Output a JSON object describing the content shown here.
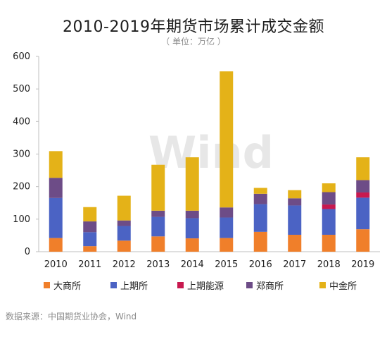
{
  "header": {
    "title": "2010-2019年期货市场累计成交金额",
    "subtitle": "（ 单位：万亿 ）"
  },
  "watermark": "Wind",
  "source": "数据来源：中国期货业协会，Wind",
  "colors": {
    "dalian": "#f07f2a",
    "shanghai": "#4b63c4",
    "ine": "#c8194f",
    "zhengzhou": "#6d4c87",
    "cffex": "#e4b218",
    "axis": "#bfbfbf",
    "grid": "#e5e5e5"
  },
  "chart_data": {
    "type": "bar",
    "stacked": true,
    "categories": [
      "2010",
      "2011",
      "2012",
      "2013",
      "2014",
      "2015",
      "2016",
      "2017",
      "2018",
      "2019"
    ],
    "ylim": [
      0,
      600
    ],
    "yticks": [
      0,
      100,
      200,
      300,
      400,
      500,
      600
    ],
    "grid": false,
    "legend_position": "bottom",
    "series": [
      {
        "name": "大商所",
        "key": "dalian",
        "values": [
          42,
          17,
          34,
          47,
          41,
          42,
          61,
          52,
          52,
          69
        ]
      },
      {
        "name": "上期所",
        "key": "shanghai",
        "values": [
          123,
          43,
          45,
          60,
          62,
          63,
          85,
          90,
          79,
          97
        ]
      },
      {
        "name": "上期能源",
        "key": "ine",
        "values": [
          0,
          0,
          0,
          0,
          0,
          0,
          0,
          0,
          14,
          16
        ]
      },
      {
        "name": "郑商所",
        "key": "zhengzhou",
        "values": [
          62,
          33,
          17,
          19,
          23,
          31,
          32,
          22,
          38,
          38
        ]
      },
      {
        "name": "中金所",
        "key": "cffex",
        "values": [
          82,
          44,
          76,
          141,
          164,
          418,
          18,
          25,
          27,
          70
        ]
      }
    ]
  }
}
